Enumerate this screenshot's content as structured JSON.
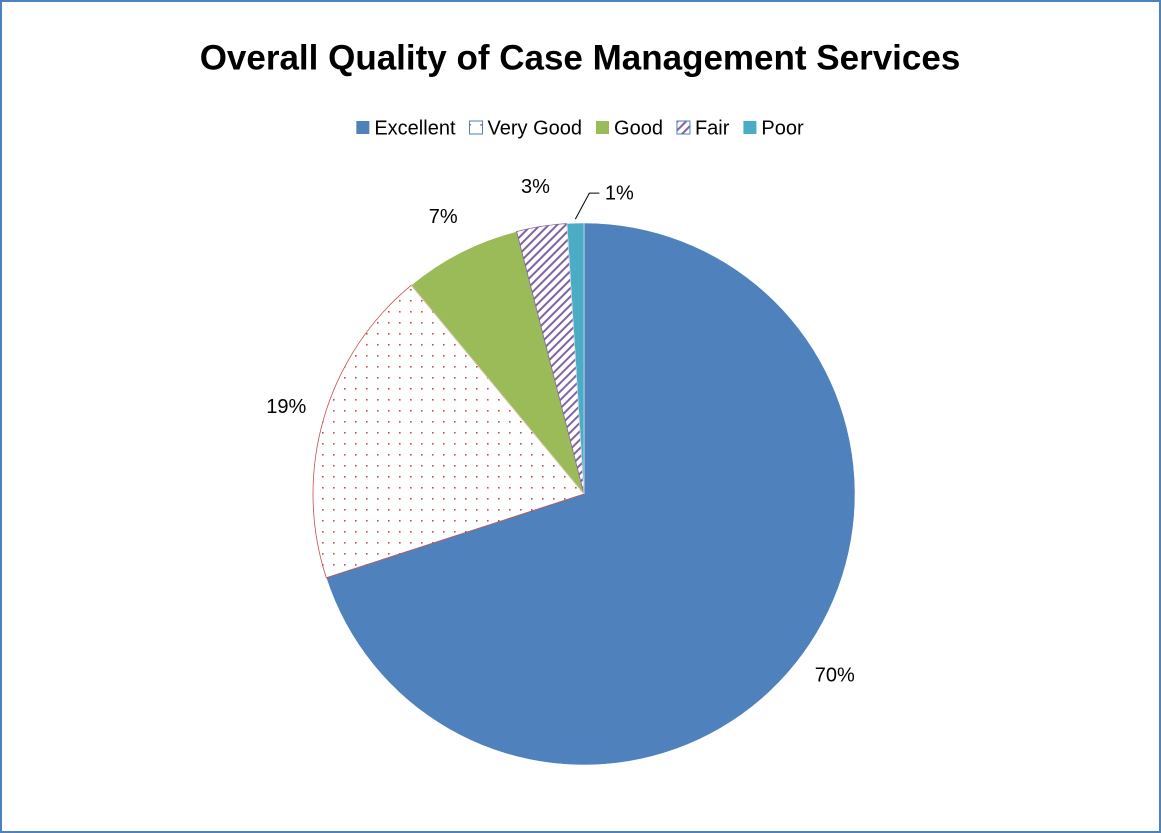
{
  "chart_data": {
    "type": "pie",
    "title": "Overall Quality of Case Management Services",
    "categories": [
      "Excellent",
      "Very Good",
      "Good",
      "Fair",
      "Poor"
    ],
    "values": [
      70,
      19,
      7,
      3,
      1
    ],
    "value_labels": [
      "70%",
      "19%",
      "7%",
      "3%",
      "1%"
    ],
    "colors": [
      "#4f81bd",
      "#c0504d",
      "#9bbb59",
      "#8064a2",
      "#4bacc6"
    ],
    "patterns": [
      "solid",
      "dots",
      "solid",
      "diagonal",
      "solid"
    ],
    "legend": "top"
  }
}
